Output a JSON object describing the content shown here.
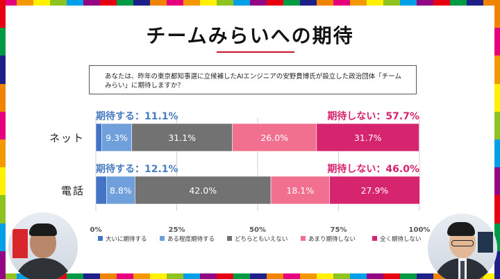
{
  "title": "チームみらいへの期待",
  "question": "あなたは、昨年の東京都知事選に立候補したAIエンジニアの安野貴博氏が設立した政治団体「チームみらい」に期待しますか？",
  "colors": {
    "strong_expect": "#4472c4",
    "somewhat_expect": "#6fa0dc",
    "neutral": "#727272",
    "not_much": "#f2708f",
    "not_at_all": "#d6246e",
    "expect_text": "#4a7cc2",
    "not_expect_text": "#d6246e",
    "title_rule": "#c8102e"
  },
  "chart_data": {
    "type": "bar",
    "orientation": "horizontal-stacked-100",
    "categories": [
      "ネット",
      "電話"
    ],
    "series": [
      {
        "name": "大いに期待する",
        "values": [
          1.8,
          3.3
        ],
        "labels": [
          "",
          ""
        ]
      },
      {
        "name": "ある程度期待する",
        "values": [
          9.3,
          8.8
        ],
        "labels": [
          "9.3%",
          "8.8%"
        ]
      },
      {
        "name": "どちらともいえない",
        "values": [
          31.1,
          42.0
        ],
        "labels": [
          "31.1%",
          "42.0%"
        ]
      },
      {
        "name": "あまり期待しない",
        "values": [
          26.0,
          18.1
        ],
        "labels": [
          "26.0%",
          "18.1%"
        ]
      },
      {
        "name": "全く期待しない",
        "values": [
          31.7,
          27.9
        ],
        "labels": [
          "31.7%",
          "27.9%"
        ]
      }
    ],
    "summaries": [
      {
        "expect": "期待する：11.1%",
        "not_expect": "期待しない：57.7%"
      },
      {
        "expect": "期待する：12.1%",
        "not_expect": "期待しない：46.0%"
      }
    ],
    "xlim": [
      0,
      100
    ],
    "xticks": [
      "0%",
      "25%",
      "50%",
      "75%",
      "100%"
    ],
    "grid": true,
    "legend_position": "bottom"
  }
}
